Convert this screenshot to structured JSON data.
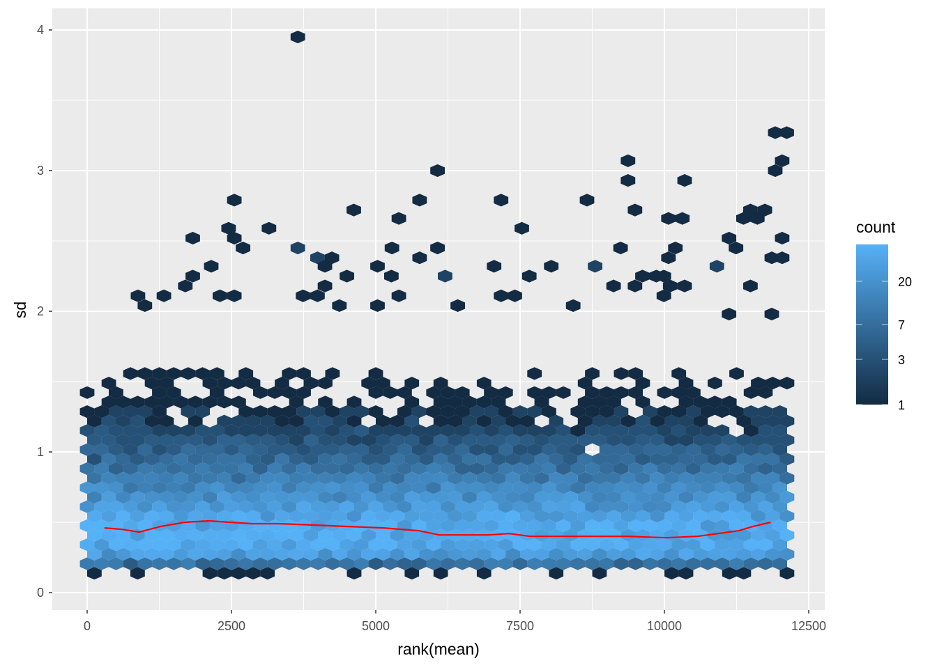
{
  "chart_data": {
    "type": "hexbin",
    "title": "",
    "xlabel": "rank(mean)",
    "ylabel": "sd",
    "xlim": [
      -600,
      12650
    ],
    "ylim": [
      -0.12,
      4.15
    ],
    "x_ticks": [
      0,
      2500,
      5000,
      7500,
      10000,
      12500
    ],
    "x_tick_labels": [
      "0",
      "2500",
      "5000",
      "7500",
      "10000",
      "12500"
    ],
    "y_ticks": [
      0,
      1,
      2,
      3,
      4
    ],
    "y_tick_labels": [
      "0",
      "1",
      "2",
      "3",
      "4"
    ],
    "grid": true,
    "panel_background": "#EBEBEB",
    "legend": {
      "title": "count",
      "position": "right",
      "scale": "log",
      "breaks": [
        1,
        3,
        7,
        20
      ],
      "break_labels": [
        "1",
        "3",
        "7",
        "20"
      ],
      "max": 49,
      "low_color": "#132B43",
      "high_color": "#56B1F7"
    },
    "trend_line": {
      "color": "#FF0000",
      "x": [
        300,
        600,
        900,
        1270,
        1690,
        2110,
        2480,
        2840,
        3320,
        3930,
        4530,
        5130,
        5740,
        6100,
        6950,
        7310,
        7670,
        8760,
        9360,
        10030,
        10570,
        10930,
        11290,
        11530,
        11840
      ],
      "y": [
        0.46,
        0.45,
        0.43,
        0.47,
        0.5,
        0.51,
        0.5,
        0.49,
        0.49,
        0.48,
        0.47,
        0.46,
        0.44,
        0.41,
        0.41,
        0.42,
        0.4,
        0.4,
        0.4,
        0.39,
        0.4,
        0.42,
        0.44,
        0.47,
        0.5
      ]
    },
    "sparse_hexes": [
      [
        3650,
        3.95,
        1
      ],
      [
        6070,
        3.0,
        1
      ],
      [
        11920,
        3.27,
        1
      ],
      [
        12120,
        3.27,
        1
      ],
      [
        9370,
        3.07,
        1
      ],
      [
        12040,
        3.07,
        1
      ],
      [
        9370,
        2.93,
        1
      ],
      [
        10350,
        2.93,
        1
      ],
      [
        11920,
        3.0,
        1
      ],
      [
        2550,
        2.79,
        1
      ],
      [
        5760,
        2.79,
        1
      ],
      [
        7170,
        2.79,
        1
      ],
      [
        8660,
        2.79,
        1
      ],
      [
        4620,
        2.72,
        1
      ],
      [
        9490,
        2.72,
        1
      ],
      [
        11490,
        2.72,
        1
      ],
      [
        11740,
        2.72,
        1
      ],
      [
        5400,
        2.66,
        1
      ],
      [
        10070,
        2.66,
        1
      ],
      [
        10310,
        2.66,
        1
      ],
      [
        11370,
        2.66,
        1
      ],
      [
        11610,
        2.66,
        1
      ],
      [
        2450,
        2.59,
        1
      ],
      [
        3150,
        2.59,
        1
      ],
      [
        7530,
        2.59,
        1
      ],
      [
        1830,
        2.52,
        1
      ],
      [
        2550,
        2.52,
        1
      ],
      [
        11120,
        2.52,
        1
      ],
      [
        12040,
        2.52,
        1
      ],
      [
        3650,
        2.45,
        2
      ],
      [
        2700,
        2.45,
        1
      ],
      [
        5280,
        2.45,
        1
      ],
      [
        6070,
        2.45,
        1
      ],
      [
        9240,
        2.45,
        1
      ],
      [
        10190,
        2.45,
        1
      ],
      [
        11240,
        2.45,
        1
      ],
      [
        3990,
        2.38,
        2
      ],
      [
        4240,
        2.38,
        1
      ],
      [
        5760,
        2.38,
        1
      ],
      [
        10070,
        2.38,
        1
      ],
      [
        11860,
        2.38,
        1
      ],
      [
        12040,
        2.38,
        1
      ],
      [
        2150,
        2.32,
        1
      ],
      [
        4120,
        2.32,
        1
      ],
      [
        5030,
        2.32,
        1
      ],
      [
        7050,
        2.32,
        1
      ],
      [
        8040,
        2.32,
        1
      ],
      [
        8800,
        2.32,
        2
      ],
      [
        10910,
        2.32,
        2
      ],
      [
        1830,
        2.25,
        1
      ],
      [
        4500,
        2.25,
        1
      ],
      [
        5270,
        2.25,
        1
      ],
      [
        6200,
        2.25,
        2
      ],
      [
        7660,
        2.25,
        1
      ],
      [
        9620,
        2.25,
        1
      ],
      [
        9860,
        2.25,
        1
      ],
      [
        9990,
        2.25,
        1
      ],
      [
        1700,
        2.18,
        1
      ],
      [
        4120,
        2.18,
        1
      ],
      [
        9120,
        2.18,
        1
      ],
      [
        9490,
        2.18,
        1
      ],
      [
        10100,
        2.18,
        1
      ],
      [
        10350,
        2.18,
        1
      ],
      [
        11490,
        2.18,
        1
      ],
      [
        880,
        2.11,
        1
      ],
      [
        1330,
        2.11,
        1
      ],
      [
        2300,
        2.11,
        1
      ],
      [
        2550,
        2.11,
        1
      ],
      [
        3740,
        2.11,
        1
      ],
      [
        3990,
        2.11,
        1
      ],
      [
        5400,
        2.11,
        1
      ],
      [
        7170,
        2.11,
        1
      ],
      [
        7410,
        2.11,
        1
      ],
      [
        9990,
        2.11,
        1
      ],
      [
        1000,
        2.04,
        1
      ],
      [
        4370,
        2.04,
        1
      ],
      [
        5030,
        2.04,
        1
      ],
      [
        6420,
        2.04,
        1
      ],
      [
        8420,
        2.04,
        1
      ],
      [
        11120,
        1.98,
        1
      ],
      [
        11860,
        1.98,
        1
      ]
    ]
  }
}
